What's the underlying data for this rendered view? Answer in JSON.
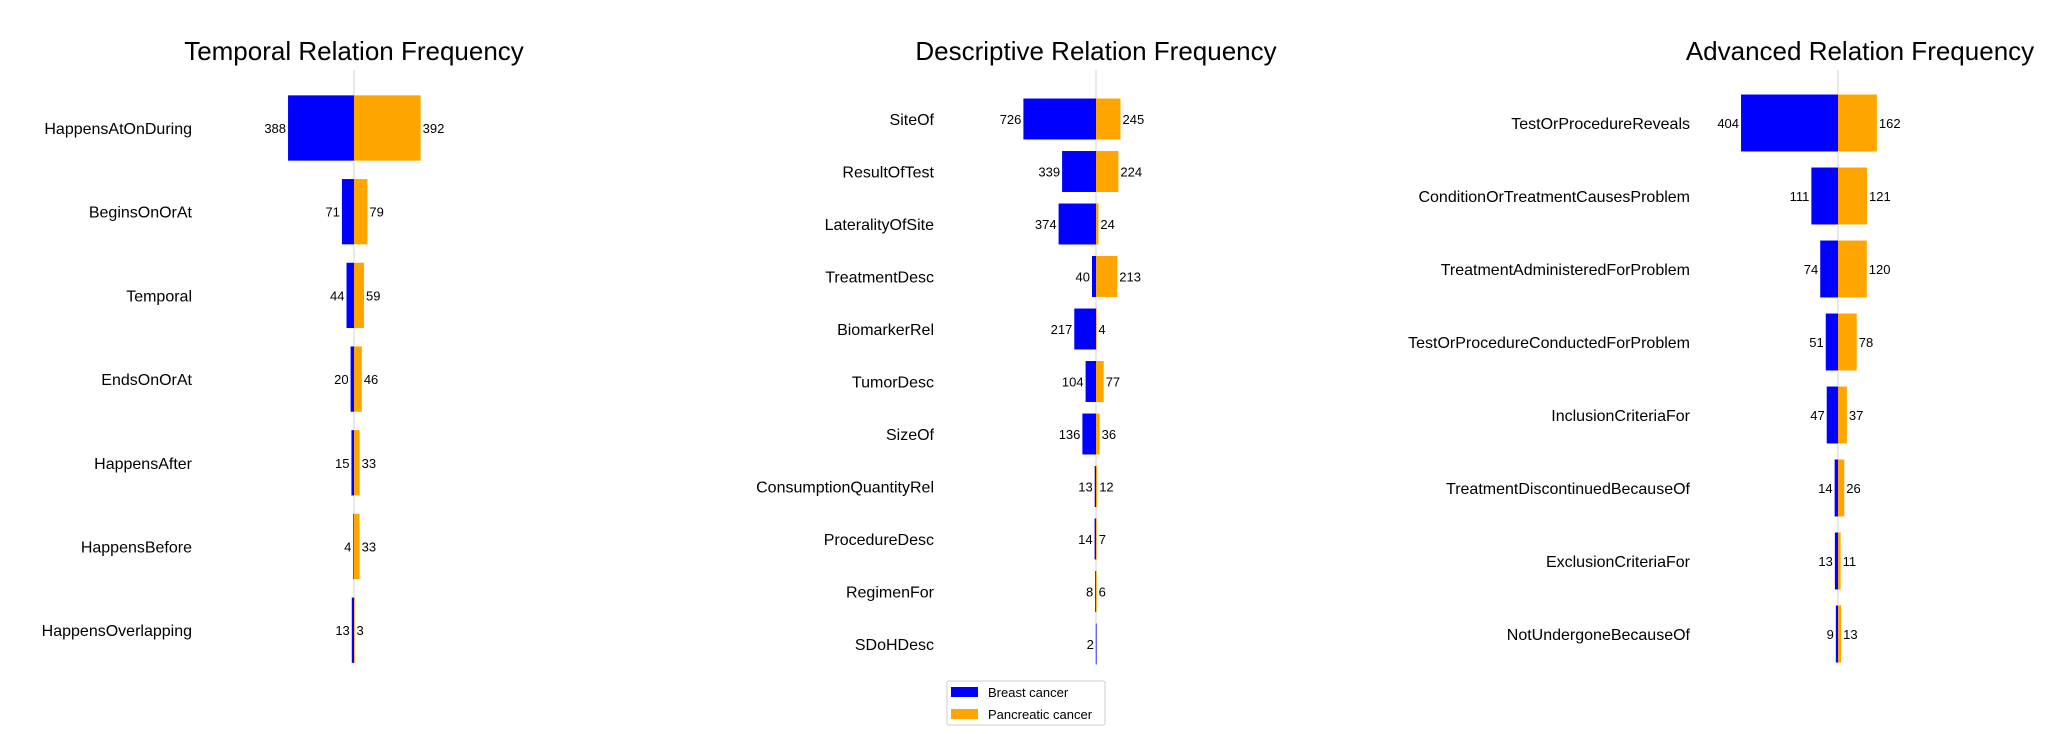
{
  "chart_data": [
    {
      "type": "bar",
      "orientation": "diverging-horizontal",
      "title": "Temporal Relation Frequency",
      "categories": [
        "HappensAtOnDuring",
        "BeginsOnOrAt",
        "Temporal",
        "EndsOnOrAt",
        "HappensAfter",
        "HappensBefore",
        "HappensOverlapping"
      ],
      "series": [
        {
          "name": "Breast cancer",
          "values": [
            388,
            71,
            44,
            20,
            15,
            4,
            13
          ]
        },
        {
          "name": "Pancreatic cancer",
          "values": [
            392,
            79,
            59,
            46,
            33,
            33,
            3
          ]
        }
      ]
    },
    {
      "type": "bar",
      "orientation": "diverging-horizontal",
      "title": "Descriptive Relation Frequency",
      "categories": [
        "SiteOf",
        "ResultOfTest",
        "LateralityOfSite",
        "TreatmentDesc",
        "BiomarkerRel",
        "TumorDesc",
        "SizeOf",
        "ConsumptionQuantityRel",
        "ProcedureDesc",
        "RegimenFor",
        "SDoHDesc"
      ],
      "series": [
        {
          "name": "Breast cancer",
          "values": [
            726,
            339,
            374,
            40,
            217,
            104,
            136,
            13,
            14,
            8,
            2
          ]
        },
        {
          "name": "Pancreatic cancer",
          "values": [
            245,
            224,
            24,
            213,
            4,
            77,
            36,
            12,
            7,
            6,
            0
          ]
        }
      ]
    },
    {
      "type": "bar",
      "orientation": "diverging-horizontal",
      "title": "Advanced Relation Frequency",
      "categories": [
        "TestOrProcedureReveals",
        "ConditionOrTreatmentCausesProblem",
        "TreatmentAdministeredForProblem",
        "TestOrProcedureConductedForProblem",
        "InclusionCriteriaFor",
        "TreatmentDiscontinuedBecauseOf",
        "ExclusionCriteriaFor",
        "NotUndergoneBecauseOf"
      ],
      "series": [
        {
          "name": "Breast cancer",
          "values": [
            404,
            111,
            74,
            51,
            47,
            14,
            13,
            9
          ]
        },
        {
          "name": "Pancreatic cancer",
          "values": [
            162,
            121,
            120,
            78,
            37,
            26,
            11,
            13
          ]
        }
      ]
    }
  ],
  "legend": {
    "placement": "bottom-center",
    "items": [
      {
        "label": "Breast cancer",
        "color": "#0000ff"
      },
      {
        "label": "Pancreatic cancer",
        "color": "#ffa500"
      }
    ]
  },
  "colors": {
    "breast": "#0000ff",
    "pancreatic": "#ffa500",
    "axis": "#d3d3d3"
  }
}
